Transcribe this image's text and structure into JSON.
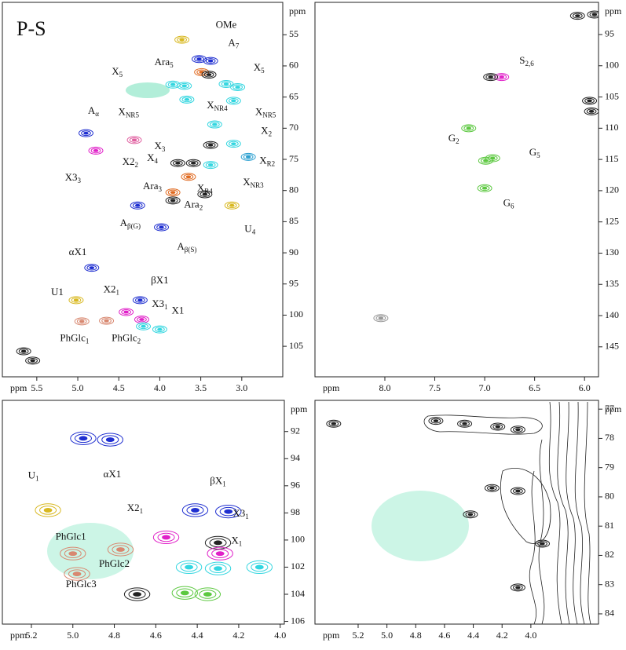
{
  "chart_data": [
    {
      "type": "scatter",
      "title": "P-S",
      "x_label": "ppm",
      "y_label": "ppm",
      "xlim": [
        5.92,
        2.5
      ],
      "ylim": [
        49.8,
        109.9
      ],
      "xticks": [
        5.5,
        {
          "value": 5,
          "label": "5.0"
        },
        4.5,
        {
          "value": 4,
          "label": "4.0"
        },
        3.5,
        {
          "value": 3,
          "label": "3.0"
        }
      ],
      "yticks": [
        55,
        60,
        65,
        70,
        75,
        80,
        85,
        90,
        95,
        100,
        105
      ],
      "x": [
        3.73,
        3.52,
        3.38,
        3.49,
        3.4,
        3.84,
        3.7,
        3.19,
        3.05,
        3.67,
        3.1,
        3.33,
        4.9,
        4.31,
        4.78,
        3.1,
        3.38,
        3.59,
        3.38,
        3.78,
        2.92,
        3.65,
        3.84,
        3.84,
        3.45,
        3.12,
        4.27,
        3.98,
        4.83,
        4.24,
        5.02,
        4.41,
        4.22,
        4.0,
        4.2,
        4.95,
        4.65,
        5.66,
        5.55
      ],
      "y": [
        55.8,
        58.9,
        59.2,
        61.0,
        61.4,
        63.0,
        63.2,
        62.9,
        63.4,
        65.4,
        65.6,
        69.4,
        70.8,
        71.9,
        73.6,
        72.5,
        72.7,
        75.6,
        75.9,
        75.6,
        74.6,
        77.8,
        80.3,
        81.6,
        80.6,
        82.4,
        82.4,
        85.9,
        92.4,
        97.6,
        97.6,
        99.5,
        100.7,
        102.3,
        101.8,
        101.0,
        100.9,
        105.8,
        107.3
      ],
      "colors": [
        "#d8b820",
        "#1f2fd0",
        "#1f2fd0",
        "#e06a20",
        "#222222",
        "#33d6e0",
        "#33d6e0",
        "#33d6e0",
        "#33d6e0",
        "#33d6e0",
        "#33d6e0",
        "#33d6e0",
        "#1f2fd0",
        "#e060a0",
        "#e020c8",
        "#33d6e0",
        "#222222",
        "#222222",
        "#33d6e0",
        "#222222",
        "#2a9fd0",
        "#e06a20",
        "#e06a20",
        "#222222",
        "#222222",
        "#d8b820",
        "#1f2fd0",
        "#1f2fd0",
        "#1f2fd0",
        "#1f2fd0",
        "#d8b820",
        "#e020c8",
        "#e020c8",
        "#33d6e0",
        "#33d6e0",
        "#d88870",
        "#d88870",
        "#222222",
        "#222222"
      ],
      "annotations": [
        {
          "text": "OMe",
          "x": 3.19,
          "y": 53.5
        },
        {
          "text": "A",
          "sub": "7",
          "x": 3.1,
          "y": 56.4
        },
        {
          "text": "Ara",
          "sub": "5",
          "x": 3.95,
          "y": 59.5
        },
        {
          "text": "X",
          "sub": "5",
          "x": 4.52,
          "y": 61.0
        },
        {
          "text": "X",
          "sub": "5",
          "x": 2.79,
          "y": 60.4
        },
        {
          "text": "X",
          "sub": "NR5",
          "x": 4.38,
          "y": 67.5
        },
        {
          "text": "X",
          "sub": "NR4",
          "x": 3.3,
          "y": 66.4
        },
        {
          "text": "X",
          "sub": "NR5",
          "x": 2.71,
          "y": 67.5
        },
        {
          "text": "X",
          "sub": "2",
          "x": 2.7,
          "y": 70.5
        },
        {
          "text": "A",
          "sub": "α",
          "x": 4.81,
          "y": 67.3
        },
        {
          "text": "X3",
          "sub": "3",
          "x": 5.06,
          "y": 78.0
        },
        {
          "text": "X2",
          "sub": "2",
          "x": 4.36,
          "y": 75.5
        },
        {
          "text": "X",
          "sub": "3",
          "x": 4.0,
          "y": 73.0
        },
        {
          "text": "X",
          "sub": "4",
          "x": 4.09,
          "y": 74.9
        },
        {
          "text": "X",
          "sub": "R2",
          "x": 2.69,
          "y": 75.3
        },
        {
          "text": "X",
          "sub": "NR3",
          "x": 2.86,
          "y": 78.8
        },
        {
          "text": "X",
          "sub": "R4",
          "x": 3.45,
          "y": 79.7
        },
        {
          "text": "Ara",
          "sub": "3",
          "x": 4.09,
          "y": 79.4
        },
        {
          "text": "Ara",
          "sub": "2",
          "x": 3.59,
          "y": 82.4
        },
        {
          "text": "U",
          "sub": "4",
          "x": 2.9,
          "y": 86.3
        },
        {
          "text": "A",
          "sub": "β(G)",
          "x": 4.36,
          "y": 85.3
        },
        {
          "text": "A",
          "sub": "β(S)",
          "x": 3.67,
          "y": 89.1
        },
        {
          "text": "αX1",
          "x": 5.0,
          "y": 90.0
        },
        {
          "text": "βX1",
          "x": 4.0,
          "y": 94.5
        },
        {
          "text": "U1",
          "x": 5.25,
          "y": 96.4
        },
        {
          "text": "X2",
          "sub": "1",
          "x": 4.59,
          "y": 96.0
        },
        {
          "text": "X3",
          "sub": "1",
          "x": 4.0,
          "y": 98.3
        },
        {
          "text": "X1",
          "x": 3.78,
          "y": 99.4
        },
        {
          "text": "PhGlc",
          "sub": "1",
          "x": 5.04,
          "y": 103.8
        },
        {
          "text": "PhGlc",
          "sub": "2",
          "x": 4.41,
          "y": 103.8
        }
      ]
    },
    {
      "type": "scatter",
      "x_label": "ppm",
      "y_label": "ppm",
      "xlim": [
        8.7,
        5.86
      ],
      "ylim": [
        89.85,
        149.8
      ],
      "xticks": [
        {
          "value": 8,
          "label": "8.0"
        },
        7.5,
        {
          "value": 7,
          "label": "7.0"
        },
        6.5,
        {
          "value": 6,
          "label": "6.0"
        }
      ],
      "yticks": [
        95,
        100,
        105,
        110,
        115,
        120,
        125,
        130,
        135,
        140,
        145
      ],
      "x": [
        6.07,
        5.9,
        6.83,
        6.94,
        5.95,
        5.93,
        7.16,
        6.99,
        6.92,
        7.0,
        8.04
      ],
      "y": [
        92.0,
        91.8,
        101.8,
        101.8,
        105.6,
        107.3,
        110.0,
        115.2,
        114.8,
        119.6,
        140.4
      ],
      "colors": [
        "#222222",
        "#222222",
        "#e020c8",
        "#222222",
        "#222222",
        "#222222",
        "#5cc840",
        "#5cc840",
        "#5cc840",
        "#5cc840",
        "#999999"
      ],
      "annotations": [
        {
          "text": "S",
          "sub": "2,6",
          "x": 6.58,
          "y": 99.3
        },
        {
          "text": "G",
          "sub": "2",
          "x": 7.31,
          "y": 111.7
        },
        {
          "text": "G",
          "sub": "5",
          "x": 6.5,
          "y": 114.0
        },
        {
          "text": "G",
          "sub": "6",
          "x": 6.76,
          "y": 122.1
        }
      ]
    },
    {
      "type": "scatter",
      "x_label": "ppm",
      "y_label": "ppm",
      "xlim": [
        5.34,
        3.98
      ],
      "ylim": [
        89.7,
        106.2
      ],
      "xticks": [
        5.2,
        {
          "value": 5,
          "label": "5.0"
        },
        4.8,
        4.6,
        4.4,
        4.2,
        {
          "value": 4,
          "label": "4.0"
        }
      ],
      "yticks": [
        92,
        94,
        96,
        98,
        100,
        102,
        104,
        106
      ],
      "x": [
        4.95,
        4.82,
        5.12,
        4.41,
        4.25,
        4.55,
        4.3,
        4.29,
        4.44,
        4.3,
        4.1,
        4.46,
        4.35,
        5.0,
        4.77,
        4.98,
        4.69
      ],
      "y": [
        92.5,
        92.6,
        97.8,
        97.8,
        97.9,
        99.8,
        100.2,
        101.0,
        102.0,
        102.1,
        102.0,
        103.9,
        104.0,
        101.0,
        100.7,
        102.5,
        104.0
      ],
      "colors": [
        "#1f2fd0",
        "#1f2fd0",
        "#d8b820",
        "#1f2fd0",
        "#1f2fd0",
        "#e020c8",
        "#222222",
        "#e020c8",
        "#33d6e0",
        "#33d6e0",
        "#33d6e0",
        "#5cc840",
        "#5cc840",
        "#d88870",
        "#d88870",
        "#d88870",
        "#222222"
      ],
      "annotations": [
        {
          "text": "αX1",
          "x": 4.81,
          "y": 95.2
        },
        {
          "text": "U",
          "sub": "1",
          "x": 5.19,
          "y": 95.3
        },
        {
          "text": "βX",
          "sub": "1",
          "x": 4.3,
          "y": 95.7
        },
        {
          "text": "X2",
          "sub": "1",
          "x": 4.7,
          "y": 97.7
        },
        {
          "text": "X3",
          "sub": "1",
          "x": 4.19,
          "y": 98.1
        },
        {
          "text": "X",
          "sub": "1",
          "x": 4.21,
          "y": 100.1
        },
        {
          "text": "PhGlc1",
          "x": 5.01,
          "y": 99.8
        },
        {
          "text": "PhGlc2",
          "x": 4.8,
          "y": 101.8
        },
        {
          "text": "PhGlc3",
          "x": 4.96,
          "y": 103.3
        }
      ]
    },
    {
      "type": "scatter",
      "x_label": "ppm",
      "y_label": "ppm",
      "xlim": [
        5.5,
        3.53
      ],
      "ylim": [
        76.7,
        84.35
      ],
      "xticks": [
        5.2,
        {
          "value": 5,
          "label": "5.0"
        },
        4.8,
        4.6,
        4.4,
        4.2,
        {
          "value": 4,
          "label": "4.0"
        }
      ],
      "yticks": [
        77,
        78,
        79,
        80,
        81,
        82,
        83,
        84
      ],
      "x": [
        5.37,
        4.66,
        4.46,
        4.23,
        4.09,
        4.27,
        4.09,
        4.09,
        3.92,
        4.42
      ],
      "y": [
        77.5,
        77.4,
        77.5,
        77.6,
        77.7,
        79.7,
        79.8,
        83.1,
        81.6,
        80.6
      ],
      "colors": [
        "#222222",
        "#222222",
        "#222222",
        "#222222",
        "#222222",
        "#222222",
        "#222222",
        "#222222",
        "#222222",
        "#222222"
      ],
      "annotations": []
    }
  ]
}
